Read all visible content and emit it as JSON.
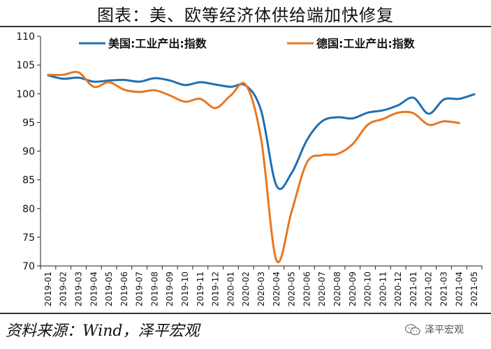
{
  "title": "图表：美、欧等经济体供给端加快修复",
  "source": "资料来源：Wind，泽平宏观",
  "watermark": "泽平宏观",
  "colors": {
    "us": "#1f6fb2",
    "de": "#e87722"
  },
  "chart_data": {
    "type": "line",
    "title": "图表：美、欧等经济体供给端加快修复",
    "xlabel": "",
    "ylabel": "",
    "ylim": [
      70,
      110
    ],
    "yticks": [
      70,
      75,
      80,
      85,
      90,
      95,
      100,
      105,
      110
    ],
    "grid": false,
    "legend_position": "top",
    "x": [
      "2019-01",
      "2019-02",
      "2019-03",
      "2019-04",
      "2019-05",
      "2019-06",
      "2019-07",
      "2019-08",
      "2019-09",
      "2019-10",
      "2019-11",
      "2019-12",
      "2020-01",
      "2020-02",
      "2020-03",
      "2020-04",
      "2020-05",
      "2020-06",
      "2020-07",
      "2020-08",
      "2020-09",
      "2020-10",
      "2020-11",
      "2020-12",
      "2021-01",
      "2021-02",
      "2021-03",
      "2021-04",
      "2021-05"
    ],
    "series": [
      {
        "name": "美国:工业产出:指数",
        "color": "#1f6fb2",
        "values": [
          103.2,
          102.6,
          102.8,
          102.1,
          102.3,
          102.4,
          102.1,
          102.7,
          102.3,
          101.5,
          102.0,
          101.6,
          101.2,
          101.4,
          97.0,
          84.0,
          86.2,
          91.9,
          95.2,
          95.9,
          95.7,
          96.7,
          97.1,
          98.0,
          99.3,
          96.5,
          99.0,
          99.1,
          99.9
        ]
      },
      {
        "name": "德国:工业产出:指数",
        "color": "#e87722",
        "values": [
          103.3,
          103.3,
          103.7,
          101.2,
          102.0,
          100.7,
          100.3,
          100.6,
          99.7,
          98.6,
          99.1,
          97.5,
          99.7,
          101.5,
          92.0,
          71.0,
          79.5,
          88.0,
          89.3,
          89.5,
          91.2,
          94.6,
          95.6,
          96.7,
          96.6,
          94.6,
          95.2,
          94.9,
          null
        ]
      }
    ]
  }
}
